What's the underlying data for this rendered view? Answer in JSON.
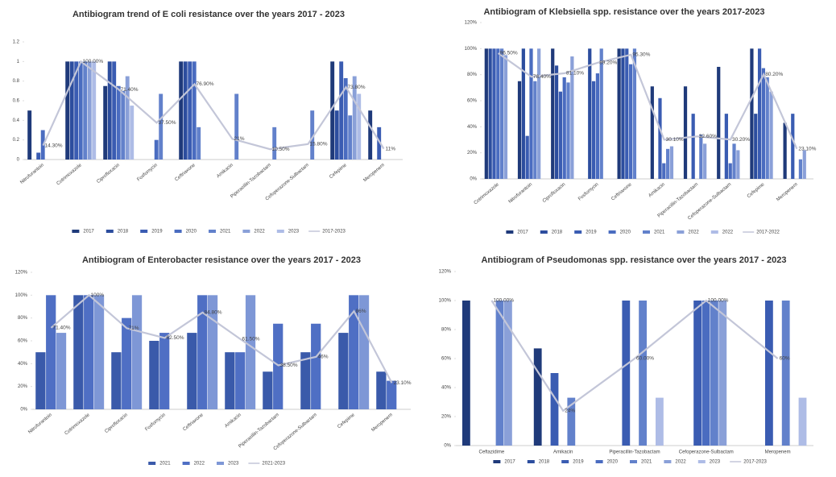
{
  "chart_data": [
    {
      "type": "bar",
      "title": "Antibiogram trend of E coli resistance over the years 2017 - 2023",
      "categories": [
        "Nitrofurantoin",
        "Cotrimoxazole",
        "Ciprofloxacin",
        "Fosfomycin",
        "Ceftriaxone",
        "Amikacin",
        "Piperacillin-Tazobactam",
        "Cefoperazone-Sulbactam",
        "Cefepime",
        "Meropenem"
      ],
      "ylim": [
        0,
        1.2
      ],
      "yticks": [
        0,
        0.2,
        0.4,
        0.6,
        0.8,
        1,
        1.2
      ],
      "series": [
        {
          "name": "2017",
          "color": "#1f3a7a",
          "values": [
            0.5,
            1,
            0.75,
            null,
            1,
            null,
            null,
            null,
            1,
            0.5
          ]
        },
        {
          "name": "2018",
          "color": "#2c4d9e",
          "values": [
            null,
            1,
            1,
            null,
            1,
            null,
            null,
            null,
            0.5,
            null
          ]
        },
        {
          "name": "2019",
          "color": "#3a5cb2",
          "values": [
            0.07,
            1,
            1,
            null,
            1,
            null,
            null,
            null,
            1,
            0.33
          ]
        },
        {
          "name": "2020",
          "color": "#4a6cc0",
          "values": [
            0.3,
            1,
            0.75,
            0.2,
            1,
            null,
            null,
            null,
            0.83,
            null
          ]
        },
        {
          "name": "2021",
          "color": "#6281cb",
          "values": [
            null,
            1,
            0.7,
            0.67,
            0.33,
            0.67,
            0.33,
            0.5,
            0.45,
            null
          ]
        },
        {
          "name": "2022",
          "color": "#8aa0d8",
          "values": [
            null,
            1,
            0.85,
            null,
            null,
            null,
            null,
            null,
            0.85,
            null
          ]
        },
        {
          "name": "2023",
          "color": "#aebce6",
          "values": [
            null,
            1,
            0.55,
            null,
            null,
            null,
            null,
            null,
            0.67,
            null
          ]
        },
        {
          "name": "2017-2023",
          "color": "#c3c6d8",
          "type": "line",
          "values": [
            0.143,
            1,
            0.714,
            0.375,
            0.769,
            0.21,
            0.105,
            0.158,
            0.738,
            0.11
          ],
          "value_labels": [
            "14.30%",
            "100.00%",
            "71.40%",
            "37.50%",
            "76.90%",
            "21%",
            "10.50%",
            "15.80%",
            "73.80%",
            "11%"
          ]
        }
      ]
    },
    {
      "type": "bar",
      "title": "Antibiogram of Klebsiella spp. resistance over the years 2017-2023",
      "categories": [
        "Cotrimoxazole",
        "Nitrofurantoin",
        "Ciprofloxacin",
        "Fosfomycin",
        "Ceftriaxone",
        "Amikacin",
        "Piperacillin-Tazobactam",
        "Cefoperazone-Sulbactam",
        "Cefepime",
        "Meropenem"
      ],
      "ylim": [
        0,
        120
      ],
      "yticks": [
        {
          "value": 0,
          "label": "0%"
        },
        {
          "value": 20,
          "label": "20%"
        },
        {
          "value": 40,
          "label": "40%"
        },
        {
          "value": 60,
          "label": "60%"
        },
        {
          "value": 80,
          "label": "80%"
        },
        {
          "value": 100,
          "label": "100%"
        },
        {
          "value": 120,
          "label": "120%"
        }
      ],
      "series": [
        {
          "name": "2017",
          "color": "#1f3a7a",
          "values": [
            100,
            75,
            100,
            null,
            100,
            71,
            71,
            86,
            100,
            43
          ]
        },
        {
          "name": "2018",
          "color": "#2c4d9e",
          "values": [
            100,
            100,
            87,
            100,
            100,
            null,
            null,
            null,
            50,
            null
          ]
        },
        {
          "name": "2019",
          "color": "#3a5cb2",
          "values": [
            100,
            33,
            67,
            75,
            100,
            62,
            50,
            50,
            100,
            50
          ]
        },
        {
          "name": "2020",
          "color": "#4a6cc0",
          "values": [
            100,
            100,
            78,
            81,
            88,
            12,
            null,
            12,
            85,
            null
          ]
        },
        {
          "name": "2021",
          "color": "#6281cb",
          "values": [
            100,
            75,
            74,
            100,
            100,
            23,
            34,
            27,
            78,
            15
          ]
        },
        {
          "name": "2022",
          "color": "#8aa0d8",
          "values": [
            95,
            100,
            94,
            null,
            null,
            25,
            27,
            22,
            67,
            22
          ]
        },
        {
          "name": "2022",
          "color": "#aebce6",
          "values": [
            null,
            null,
            null,
            null,
            null,
            null,
            null,
            null,
            null,
            null
          ]
        },
        {
          "name": "2017-2022",
          "color": "#c3c6d8",
          "type": "line",
          "values": [
            96.5,
            78.4,
            81.1,
            89.2,
            95.3,
            30.1,
            32.6,
            30.2,
            80.2,
            23.1
          ],
          "value_labels": [
            "96.50%",
            "78.40%",
            "81.10%",
            "89.20%",
            "95.30%",
            "30.10%",
            "32.60%",
            "30.20%",
            "80.20%",
            "23.10%"
          ]
        }
      ]
    },
    {
      "type": "bar",
      "title": "Antibiogram of Enterobacter resistance over the years 2017 - 2023",
      "categories": [
        "Nitrofurantoin",
        "Cotrimoxazole",
        "Ciprofloxacin",
        "Fosfomycin",
        "Ceftriaxone",
        "Amikacin",
        "Piperacillin-Tazobactam",
        "Cefoperazone-Sulbactam",
        "Cefepime",
        "Meropenem"
      ],
      "ylim": [
        0,
        120
      ],
      "yticks": [
        {
          "value": 0,
          "label": "0%"
        },
        {
          "value": 20,
          "label": "20%"
        },
        {
          "value": 40,
          "label": "40%"
        },
        {
          "value": 60,
          "label": "60%"
        },
        {
          "value": 80,
          "label": "80%"
        },
        {
          "value": 100,
          "label": "100%"
        },
        {
          "value": 120,
          "label": "120%"
        }
      ],
      "series": [
        {
          "name": "2021",
          "color": "#3a5aaa",
          "values": [
            50,
            100,
            50,
            60,
            67,
            50,
            33,
            50,
            67,
            33
          ]
        },
        {
          "name": "2022",
          "color": "#4f6fc4",
          "values": [
            100,
            100,
            80,
            67,
            100,
            50,
            75,
            75,
            100,
            25
          ]
        },
        {
          "name": "2023",
          "color": "#7e97d6",
          "values": [
            67,
            100,
            100,
            null,
            100,
            100,
            null,
            null,
            100,
            null
          ]
        },
        {
          "name": "2021-2023",
          "color": "#c3c6d8",
          "type": "line",
          "values": [
            71.4,
            100,
            71,
            62.5,
            84.8,
            61.5,
            38.5,
            46,
            86,
            23.1
          ],
          "value_labels": [
            "71.40%",
            "100%",
            "71%",
            "62.50%",
            "84.80%",
            "61.50%",
            "38.50%",
            "46%",
            "86%",
            "23.10%"
          ]
        }
      ]
    },
    {
      "type": "bar",
      "title": "Antibiogram of Pseudomonas spp. resistance over the years 2017 - 2023",
      "categories": [
        "Ceftazidime",
        "Amikacin",
        "Piperacillin-Tazobactam",
        "Cefoperazone-Sulbactam",
        "Meropenem"
      ],
      "ylim": [
        0,
        120
      ],
      "yticks": [
        {
          "value": 0,
          "label": "0%"
        },
        {
          "value": 20,
          "label": "20%"
        },
        {
          "value": 40,
          "label": "40%"
        },
        {
          "value": 60,
          "label": "60%"
        },
        {
          "value": 80,
          "label": "80%"
        },
        {
          "value": 100,
          "label": "100%"
        },
        {
          "value": 120,
          "label": "120%"
        }
      ],
      "series": [
        {
          "name": "2017",
          "color": "#1f3a7a",
          "values": [
            100,
            67,
            null,
            null,
            null
          ]
        },
        {
          "name": "2018",
          "color": "#2c4d9e",
          "values": [
            null,
            null,
            null,
            null,
            null
          ]
        },
        {
          "name": "2019",
          "color": "#3a5cb2",
          "values": [
            null,
            50,
            100,
            100,
            100
          ]
        },
        {
          "name": "2020",
          "color": "#4a6cc0",
          "values": [
            null,
            null,
            null,
            100,
            null
          ]
        },
        {
          "name": "2021",
          "color": "#6281cb",
          "values": [
            100,
            33,
            100,
            100,
            100
          ]
        },
        {
          "name": "2022",
          "color": "#8aa0d8",
          "values": [
            100,
            null,
            null,
            100,
            null
          ]
        },
        {
          "name": "2023",
          "color": "#aebce6",
          "values": [
            null,
            null,
            33,
            null,
            33
          ]
        },
        {
          "name": "2017-2023",
          "color": "#c3c6d8",
          "type": "line",
          "values": [
            100,
            24,
            60,
            100,
            60
          ],
          "value_labels": [
            "100.00%",
            "24%",
            "60.00%",
            "100.00%",
            "60%"
          ]
        }
      ]
    }
  ]
}
